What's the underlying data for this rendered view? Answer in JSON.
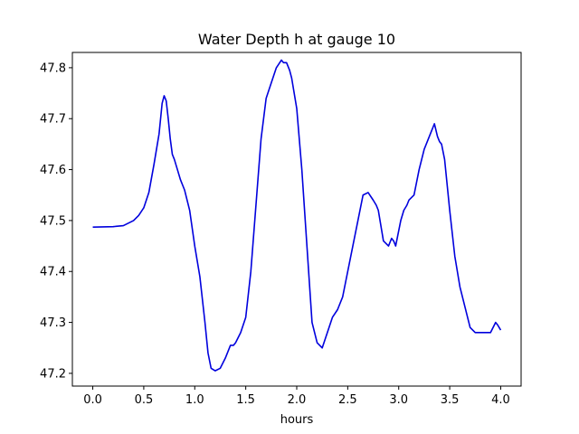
{
  "chart_data": {
    "type": "line",
    "title": "Water Depth h at gauge 10",
    "xlabel": "hours",
    "ylabel": "",
    "xlim": [
      -0.2,
      4.2
    ],
    "ylim": [
      47.175,
      47.83
    ],
    "grid": false,
    "legend": "none",
    "x_ticks": [
      0.0,
      0.5,
      1.0,
      1.5,
      2.0,
      2.5,
      3.0,
      3.5,
      4.0
    ],
    "x_tick_labels": [
      "0.0",
      "0.5",
      "1.0",
      "1.5",
      "2.0",
      "2.5",
      "3.0",
      "3.5",
      "4.0"
    ],
    "y_ticks": [
      47.2,
      47.3,
      47.4,
      47.5,
      47.6,
      47.7,
      47.8
    ],
    "y_tick_labels": [
      "47.2",
      "47.3",
      "47.4",
      "47.5",
      "47.6",
      "47.7",
      "47.8"
    ],
    "series": [
      {
        "color": "#0000dd",
        "x": [
          0.0,
          0.2,
          0.3,
          0.4,
          0.45,
          0.5,
          0.55,
          0.6,
          0.65,
          0.68,
          0.7,
          0.72,
          0.74,
          0.76,
          0.78,
          0.8,
          0.83,
          0.86,
          0.9,
          0.95,
          1.0,
          1.05,
          1.1,
          1.13,
          1.16,
          1.2,
          1.25,
          1.3,
          1.35,
          1.38,
          1.4,
          1.45,
          1.5,
          1.55,
          1.6,
          1.65,
          1.7,
          1.75,
          1.8,
          1.85,
          1.87,
          1.9,
          1.93,
          1.95,
          2.0,
          2.05,
          2.1,
          2.15,
          2.2,
          2.25,
          2.3,
          2.35,
          2.4,
          2.45,
          2.5,
          2.55,
          2.6,
          2.65,
          2.7,
          2.75,
          2.78,
          2.8,
          2.85,
          2.9,
          2.93,
          2.95,
          2.97,
          2.99,
          3.02,
          3.05,
          3.08,
          3.1,
          3.15,
          3.2,
          3.25,
          3.3,
          3.35,
          3.38,
          3.4,
          3.42,
          3.45,
          3.5,
          3.55,
          3.6,
          3.65,
          3.7,
          3.75,
          3.8,
          3.85,
          3.9,
          3.95,
          3.97,
          4.0
        ],
        "y": [
          47.487,
          47.488,
          47.49,
          47.5,
          47.51,
          47.525,
          47.555,
          47.61,
          47.67,
          47.73,
          47.745,
          47.735,
          47.7,
          47.66,
          47.63,
          47.62,
          47.6,
          47.58,
          47.56,
          47.52,
          47.45,
          47.39,
          47.3,
          47.24,
          47.21,
          47.205,
          47.21,
          47.23,
          47.255,
          47.255,
          47.26,
          47.28,
          47.31,
          47.4,
          47.53,
          47.66,
          47.74,
          47.77,
          47.8,
          47.815,
          47.81,
          47.81,
          47.795,
          47.78,
          47.72,
          47.6,
          47.45,
          47.3,
          47.26,
          47.25,
          47.28,
          47.31,
          47.325,
          47.35,
          47.4,
          47.45,
          47.5,
          47.55,
          47.555,
          47.54,
          47.53,
          47.52,
          47.46,
          47.45,
          47.465,
          47.46,
          47.45,
          47.47,
          47.5,
          47.52,
          47.53,
          47.54,
          47.55,
          47.6,
          47.64,
          47.665,
          47.69,
          47.665,
          47.655,
          47.65,
          47.62,
          47.52,
          47.43,
          47.37,
          47.33,
          47.29,
          47.28,
          47.28,
          47.28,
          47.28,
          47.3,
          47.295,
          47.285
        ]
      }
    ]
  }
}
